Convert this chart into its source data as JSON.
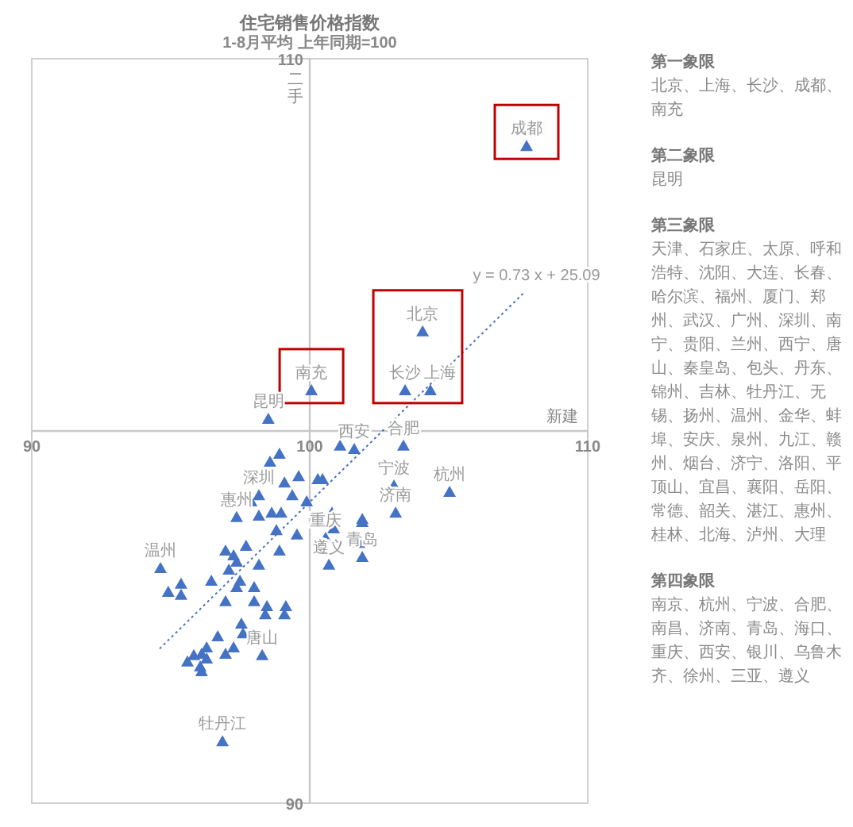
{
  "chart_data": {
    "type": "scatter",
    "title": "住宅销售价格指数",
    "subtitle": "1-8月平均 上年同期=100",
    "xlabel": "新建",
    "ylabel": "二手",
    "xlim": [
      90,
      110
    ],
    "ylim": [
      90,
      110
    ],
    "xticks": [
      90,
      100,
      110
    ],
    "yticks": [
      90,
      {
        "value": 100,
        "label": null
      },
      110
    ],
    "marker": "triangle",
    "grid": false,
    "series": [
      {
        "color": "#4472c4",
        "x": [
          107.8,
          104.06,
          103.43,
          104.34,
          100.06,
          98.51,
          101.09,
          101.6,
          103.37,
          103.03,
          105.03,
          103.09,
          98.91,
          98.57,
          99.6,
          99.09,
          100.29,
          100.46,
          98.17,
          99.37,
          97.89,
          99.89,
          97.37,
          98.17,
          98.63,
          98.97,
          100.8,
          101.89,
          101.89,
          100.86,
          98.8,
          99.54,
          100.57,
          101.77,
          96.97,
          97.71,
          98.91,
          101.89,
          97.26,
          97.37,
          98.17,
          100.69,
          94.63,
          95.37,
          94.91,
          95.37,
          97.09,
          96.46,
          97.49,
          98.0,
          97.37,
          96.97,
          98.0,
          98.46,
          98.4,
          99.14,
          99.09,
          97.54,
          97.6,
          96.69,
          97.26,
          96.97,
          98.29,
          96.29,
          96.11,
          96.29,
          95.6,
          96.06,
          96.11,
          95.83,
          96.86
        ],
        "values": [
          107.65,
          102.67,
          101.09,
          101.09,
          101.09,
          100.32,
          99.6,
          99.51,
          99.6,
          98.53,
          98.36,
          97.8,
          99.38,
          99.17,
          98.78,
          98.61,
          98.7,
          98.7,
          98.27,
          98.27,
          98.1,
          98.1,
          97.68,
          97.72,
          97.8,
          97.8,
          97.8,
          97.63,
          97.55,
          97.38,
          97.33,
          97.21,
          97.12,
          96.99,
          96.78,
          96.91,
          96.78,
          96.61,
          96.65,
          96.48,
          96.4,
          96.4,
          96.31,
          95.89,
          95.67,
          95.59,
          96.27,
          95.97,
          95.97,
          95.8,
          95.8,
          95.42,
          95.42,
          95.29,
          95.07,
          95.29,
          95.07,
          94.82,
          94.56,
          94.48,
          94.18,
          94.01,
          93.97,
          94.18,
          94.01,
          93.88,
          93.8,
          93.67,
          93.54,
          93.97,
          91.66
        ]
      },
      {
        "type": "line",
        "marker": "none",
        "color": "#4472c4",
        "line_style": "dotted",
        "x": [
          94.6,
          107.7
        ],
        "values": [
          94.15,
          103.71
        ]
      }
    ],
    "annotations": [
      {
        "text": "y = 0.73 x + 25.09",
        "x": 107.7,
        "y": 103.71
      },
      {
        "text": "成都",
        "x": 107.8,
        "y": 107.65
      },
      {
        "text": "北京",
        "x": 104.06,
        "y": 102.67
      },
      {
        "text": "长沙",
        "x": 103.43,
        "y": 101.09
      },
      {
        "text": "上海",
        "x": 104.34,
        "y": 101.09
      },
      {
        "text": "南充",
        "x": 100.06,
        "y": 101.09
      },
      {
        "text": "昆明",
        "x": 98.51,
        "y": 100.32
      },
      {
        "text": "西安",
        "x": 101.6,
        "y": 99.51
      },
      {
        "text": "合肥",
        "x": 103.37,
        "y": 99.6
      },
      {
        "text": "宁波",
        "x": 103.03,
        "y": 98.53
      },
      {
        "text": "杭州",
        "x": 105.03,
        "y": 98.36
      },
      {
        "text": "济南",
        "x": 103.09,
        "y": 97.8
      },
      {
        "text": "深圳",
        "x": 98.17,
        "y": 98.27
      },
      {
        "text": "惠州",
        "x": 97.37,
        "y": 97.68
      },
      {
        "text": "重庆",
        "x": 100.57,
        "y": 97.12
      },
      {
        "text": "青岛",
        "x": 101.89,
        "y": 96.61
      },
      {
        "text": "遵义",
        "x": 100.69,
        "y": 96.4
      },
      {
        "text": "温州",
        "x": 94.63,
        "y": 96.31
      },
      {
        "text": "唐山",
        "x": 98.29,
        "y": 93.97
      },
      {
        "text": "牡丹江",
        "x": 96.86,
        "y": 91.66
      },
      "第一象限",
      "北京、上海、长沙、成都、南充",
      "第二象限",
      "昆明",
      "第三象限",
      "天津、石家庄、太原、呼和浩特、沈阳、大连、长春、哈尔滨、福州、厦门、郑州、武汉、广州、深圳、南宁、贵阳、兰州、西宁、唐山、秦皇岛、包头、丹东、锦州、吉林、牡丹江、无锡、扬州、温州、金华、蚌埠、安庆、泉州、九江、赣州、烟台、济宁、洛阳、平顶山、宜昌、襄阳、岳阳、常德、韶关、湛江、惠州、桂林、北海、泸州、大理",
      "第四象限",
      "南京、杭州、宁波、合肥、南昌、济南、青岛、海口、重庆、西安、银川、乌鲁木齐、徐州、三亚、遵义"
    ]
  }
}
